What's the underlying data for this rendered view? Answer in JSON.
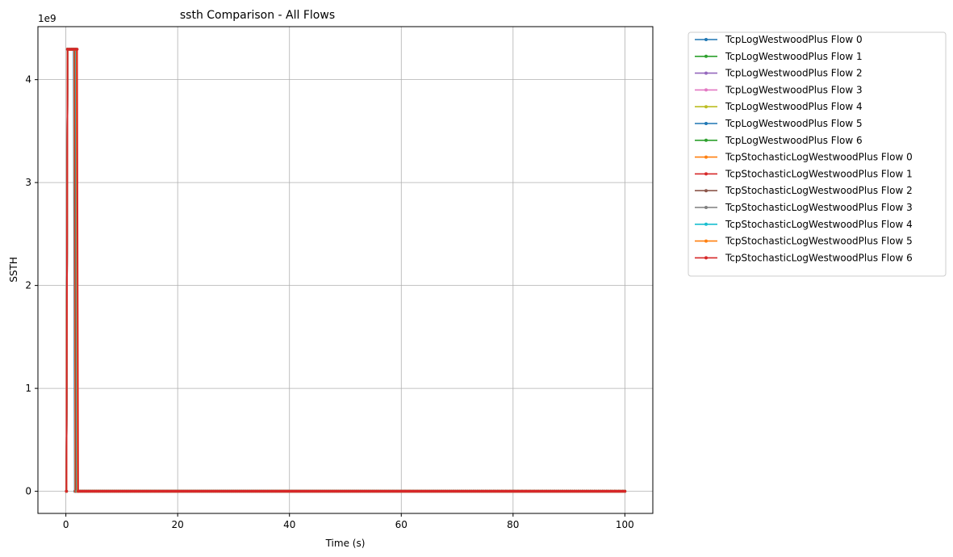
{
  "chart_data": {
    "type": "line",
    "title": "ssth Comparison - All Flows",
    "xlabel": "Time (s)",
    "ylabel": "SSTH",
    "y_scale_label": "1e9",
    "xlim": [
      -5,
      105
    ],
    "ylim": [
      -0.215,
      4.515
    ],
    "x_ticks": [
      0,
      20,
      40,
      60,
      80,
      100
    ],
    "y_ticks": [
      0,
      1,
      2,
      3,
      4
    ],
    "grid": true,
    "legend_position": "outside-right",
    "series": [
      {
        "name": "TcpLogWestwoodPlus Flow 0",
        "color": "#1f77b4",
        "x": [
          0.1,
          0.3,
          1.4,
          1.6,
          100
        ],
        "y": [
          0,
          4.295,
          4.295,
          0,
          0
        ]
      },
      {
        "name": "TcpLogWestwoodPlus Flow 1",
        "color": "#2ca02c",
        "x": [
          0.1,
          0.3,
          1.5,
          1.7,
          100
        ],
        "y": [
          0,
          4.295,
          4.295,
          0,
          0
        ]
      },
      {
        "name": "TcpLogWestwoodPlus Flow 2",
        "color": "#9467bd",
        "x": [
          0.1,
          0.3,
          1.5,
          1.7,
          100
        ],
        "y": [
          0,
          4.295,
          4.295,
          0,
          0
        ]
      },
      {
        "name": "TcpLogWestwoodPlus Flow 3",
        "color": "#e377c2",
        "x": [
          0.1,
          0.3,
          1.5,
          1.7,
          100
        ],
        "y": [
          0,
          4.295,
          4.295,
          0,
          0
        ]
      },
      {
        "name": "TcpLogWestwoodPlus Flow 4",
        "color": "#bcbd22",
        "x": [
          0.1,
          0.3,
          1.6,
          1.8,
          100
        ],
        "y": [
          0,
          4.295,
          4.295,
          0,
          0
        ]
      },
      {
        "name": "TcpLogWestwoodPlus Flow 5",
        "color": "#1f77b4",
        "x": [
          0.1,
          0.3,
          1.6,
          1.8,
          100
        ],
        "y": [
          0,
          4.295,
          4.295,
          0,
          0
        ]
      },
      {
        "name": "TcpLogWestwoodPlus Flow 6",
        "color": "#2ca02c",
        "x": [
          0.1,
          0.3,
          1.7,
          1.9,
          100
        ],
        "y": [
          0,
          4.295,
          4.295,
          0,
          0
        ]
      },
      {
        "name": "TcpStochasticLogWestwoodPlus Flow 0",
        "color": "#ff7f0e",
        "x": [
          0.1,
          0.3,
          1.5,
          1.7,
          100
        ],
        "y": [
          0,
          4.295,
          4.295,
          0,
          0
        ]
      },
      {
        "name": "TcpStochasticLogWestwoodPlus Flow 1",
        "color": "#d62728",
        "x": [
          0.1,
          0.3,
          1.6,
          1.8,
          100
        ],
        "y": [
          0,
          4.295,
          4.295,
          0,
          0
        ]
      },
      {
        "name": "TcpStochasticLogWestwoodPlus Flow 2",
        "color": "#8c564b",
        "x": [
          0.1,
          0.3,
          1.7,
          1.9,
          100
        ],
        "y": [
          0,
          4.295,
          4.295,
          0,
          0
        ]
      },
      {
        "name": "TcpStochasticLogWestwoodPlus Flow 3",
        "color": "#7f7f7f",
        "x": [
          0.1,
          0.3,
          1.8,
          2.0,
          100
        ],
        "y": [
          0,
          4.295,
          4.295,
          0,
          0
        ]
      },
      {
        "name": "TcpStochasticLogWestwoodPlus Flow 4",
        "color": "#17becf",
        "x": [
          0.1,
          0.3,
          1.8,
          2.0,
          100
        ],
        "y": [
          0,
          4.295,
          4.295,
          0,
          0
        ]
      },
      {
        "name": "TcpStochasticLogWestwoodPlus Flow 5",
        "color": "#ff7f0e",
        "x": [
          0.1,
          0.3,
          1.9,
          2.1,
          100
        ],
        "y": [
          0,
          4.295,
          4.295,
          0,
          0
        ]
      },
      {
        "name": "TcpStochasticLogWestwoodPlus Flow 6",
        "color": "#d62728",
        "x": [
          0.1,
          0.3,
          2.0,
          2.2,
          100
        ],
        "y": [
          0,
          4.295,
          4.295,
          0,
          0
        ]
      }
    ]
  }
}
